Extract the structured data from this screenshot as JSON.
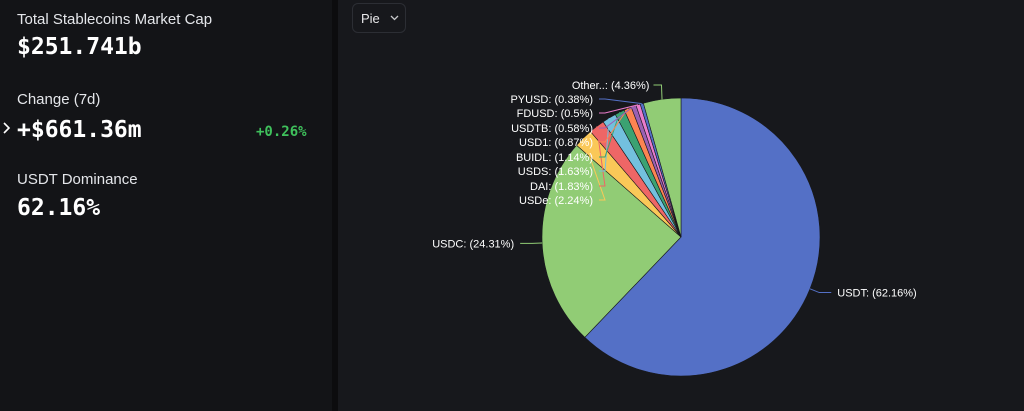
{
  "stats": {
    "market_cap_label": "Total Stablecoins Market Cap",
    "market_cap_value": "$251.741b",
    "change_label": "Change (7d)",
    "change_value": "+$661.36m",
    "change_pct": "+0.26%",
    "dominance_label": "USDT Dominance",
    "dominance_value": "62.16%"
  },
  "controls": {
    "chart_type_selected": "Pie"
  },
  "colors": {
    "positive": "#3fc15c"
  },
  "chart_data": {
    "type": "pie",
    "slices": [
      {
        "label": "USDT: (62.16%)",
        "value": 62.16,
        "color": "#5470c6"
      },
      {
        "label": "USDC: (24.31%)",
        "value": 24.31,
        "color": "#91cc75"
      },
      {
        "label": "USDe: (2.24%)",
        "value": 2.24,
        "color": "#fac858"
      },
      {
        "label": "DAI: (1.83%)",
        "value": 1.83,
        "color": "#ee6666"
      },
      {
        "label": "USDS: (1.63%)",
        "value": 1.63,
        "color": "#73c0de"
      },
      {
        "label": "BUIDL: (1.14%)",
        "value": 1.14,
        "color": "#3ba272"
      },
      {
        "label": "USD1: (0.87%)",
        "value": 0.87,
        "color": "#fc8452"
      },
      {
        "label": "USDTB: (0.58%)",
        "value": 0.58,
        "color": "#9a60b4"
      },
      {
        "label": "FDUSD: (0.5%)",
        "value": 0.5,
        "color": "#ea7ccc"
      },
      {
        "label": "PYUSD: (0.38%)",
        "value": 0.38,
        "color": "#5470c6"
      },
      {
        "label": "Other..: (4.36%)",
        "value": 4.36,
        "color": "#91cc75"
      }
    ]
  }
}
